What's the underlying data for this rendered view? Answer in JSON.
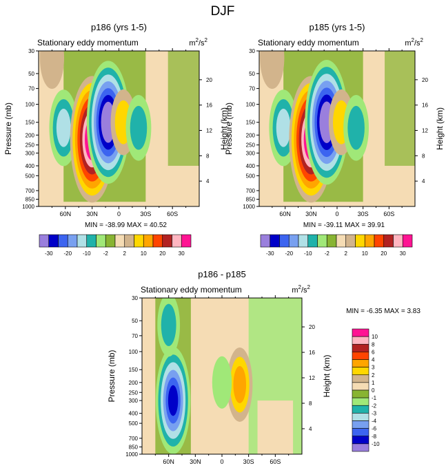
{
  "figure": {
    "title": "DJF"
  },
  "chart_data": [
    {
      "type": "heatmap",
      "title": "p186 (yrs 1-5)",
      "left_label": "Stationary eddy momentum",
      "units": "m²/s²",
      "units_base": "m",
      "units_sup_1": "2",
      "units_mid": "/s",
      "units_sup_2": "2",
      "ylabel": "Pressure (mb)",
      "ylabel_right": "Height (km)",
      "x_ticks": [
        "60N",
        "30N",
        "0",
        "30S",
        "60S"
      ],
      "x_tick_values": [
        60,
        30,
        0,
        -30,
        -60
      ],
      "xlim": [
        90,
        -90
      ],
      "y_ticks": [
        30,
        50,
        70,
        100,
        150,
        200,
        250,
        300,
        400,
        500,
        700,
        850,
        1000
      ],
      "ylim": [
        1000,
        30
      ],
      "y_right_ticks": [
        4,
        8,
        12,
        16,
        20
      ],
      "stats": "MIN = -38.99   MAX =  40.52",
      "min": -38.99,
      "max": 40.52,
      "features": [
        {
          "lat": 62,
          "p": 170,
          "value": -12
        },
        {
          "lat": 30,
          "p": 220,
          "value": 40
        },
        {
          "lat": 12,
          "p": 150,
          "value": -38
        },
        {
          "lat": -5,
          "p": 150,
          "value": 6
        },
        {
          "lat": -22,
          "p": 170,
          "value": -6
        },
        {
          "lat": 75,
          "p": 35,
          "value": 4
        }
      ]
    },
    {
      "type": "heatmap",
      "title": "p185 (yrs 1-5)",
      "left_label": "Stationary eddy momentum",
      "units": "m²/s²",
      "units_base": "m",
      "units_sup_1": "2",
      "units_mid": "/s",
      "units_sup_2": "2",
      "ylabel": "Pressure (mb)",
      "ylabel_right": "Height (km)",
      "x_ticks": [
        "60N",
        "30N",
        "0",
        "30S",
        "60S"
      ],
      "x_tick_values": [
        60,
        30,
        0,
        -30,
        -60
      ],
      "xlim": [
        90,
        -90
      ],
      "y_ticks": [
        30,
        50,
        70,
        100,
        150,
        200,
        250,
        300,
        400,
        500,
        700,
        850,
        1000
      ],
      "ylim": [
        1000,
        30
      ],
      "y_right_ticks": [
        4,
        8,
        12,
        16,
        20
      ],
      "stats": "MIN = -39.11   MAX =  39.91",
      "min": -39.11,
      "max": 39.91,
      "features": [
        {
          "lat": 62,
          "p": 170,
          "value": -12
        },
        {
          "lat": 30,
          "p": 220,
          "value": 40
        },
        {
          "lat": 12,
          "p": 150,
          "value": -39
        },
        {
          "lat": -5,
          "p": 150,
          "value": 6
        },
        {
          "lat": -22,
          "p": 170,
          "value": -6
        },
        {
          "lat": 75,
          "p": 35,
          "value": 4
        }
      ]
    },
    {
      "type": "heatmap",
      "title": "p186 - p185",
      "left_label": "Stationary eddy momentum",
      "units": "m²/s²",
      "units_base": "m",
      "units_sup_1": "2",
      "units_mid": "/s",
      "units_sup_2": "2",
      "ylabel": "Pressure (mb)",
      "ylabel_right": "Height (km)",
      "x_ticks": [
        "60N",
        "30N",
        "0",
        "30S",
        "60S"
      ],
      "x_tick_values": [
        60,
        30,
        0,
        -30,
        -60
      ],
      "xlim": [
        90,
        -90
      ],
      "y_ticks": [
        30,
        50,
        70,
        100,
        150,
        200,
        250,
        300,
        400,
        500,
        700,
        850,
        1000
      ],
      "ylim": [
        1000,
        30
      ],
      "y_right_ticks": [
        4,
        8,
        12,
        16,
        20
      ],
      "stats": "MIN =  -6.35   MAX =   3.83",
      "min": -6.35,
      "max": 3.83,
      "features": [
        {
          "lat": 55,
          "p": 300,
          "value": -6
        },
        {
          "lat": 60,
          "p": 55,
          "value": -2
        },
        {
          "lat": -20,
          "p": 210,
          "value": 3
        },
        {
          "lat": 0,
          "p": 200,
          "value": -1
        }
      ]
    }
  ],
  "legends": [
    {
      "orientation": "horizontal",
      "colors": [
        "#9a7fdd",
        "#0000c8",
        "#3c64f0",
        "#78a0f0",
        "#b0e0e6",
        "#20b2aa",
        "#a0e878",
        "#88b432",
        "#f5dcb4",
        "#d2b48c",
        "#ffd700",
        "#ffa500",
        "#ff4500",
        "#b22222",
        "#ffb6c1",
        "#ff1493"
      ],
      "labels": [
        "-30",
        "-20",
        "-10",
        "-2",
        "2",
        "10",
        "20",
        "30"
      ]
    },
    {
      "orientation": "horizontal",
      "colors": [
        "#9a7fdd",
        "#0000c8",
        "#3c64f0",
        "#78a0f0",
        "#b0e0e6",
        "#20b2aa",
        "#a0e878",
        "#88b432",
        "#f5dcb4",
        "#d2b48c",
        "#ffd700",
        "#ffa500",
        "#ff4500",
        "#b22222",
        "#ffb6c1",
        "#ff1493"
      ],
      "labels": [
        "-30",
        "-20",
        "-10",
        "-2",
        "2",
        "10",
        "20",
        "30"
      ]
    },
    {
      "orientation": "vertical",
      "colors": [
        "#ff1493",
        "#ffb6c1",
        "#b22222",
        "#ff4500",
        "#ffa500",
        "#ffd700",
        "#d2b48c",
        "#f5dcb4",
        "#88b432",
        "#a0e878",
        "#20b2aa",
        "#b0e0e6",
        "#78a0f0",
        "#3c64f0",
        "#0000c8",
        "#9a7fdd"
      ],
      "labels": [
        "10",
        "8",
        "6",
        "4",
        "3",
        "2",
        "1",
        "0",
        "-1",
        "-2",
        "-3",
        "-4",
        "-6",
        "-8",
        "-10"
      ]
    }
  ]
}
